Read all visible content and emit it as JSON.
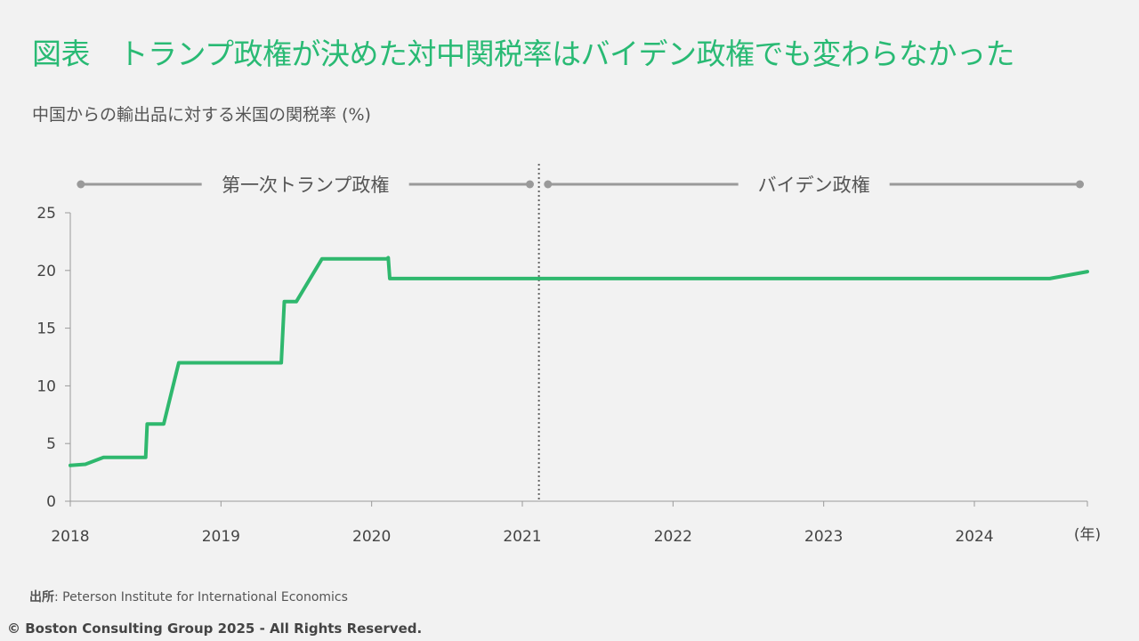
{
  "header": {
    "title": "図表　トランプ政権が決めた対中関税率はバイデン政権でも変わらなかった",
    "subtitle": "中国からの輸出品に対する米国の関税率 (%)"
  },
  "footer": {
    "source_label": "出所",
    "source_text": ": Peterson Institute for International Economics",
    "copyright": "© Boston Consulting Group 2025 - All Rights Reserved."
  },
  "chart_data": {
    "type": "line",
    "title": "",
    "ylabel": "",
    "x_unit_label": "(年)",
    "xlim": [
      2018,
      2024.75
    ],
    "ylim": [
      0,
      25
    ],
    "y_ticks": [
      0,
      5,
      10,
      15,
      20,
      25
    ],
    "x_ticks": [
      {
        "label": "2018",
        "value": 2018
      },
      {
        "label": "2019",
        "value": 2019
      },
      {
        "label": "2020",
        "value": 2020
      },
      {
        "label": "2021",
        "value": 2021
      },
      {
        "label": "2022",
        "value": 2022
      },
      {
        "label": "2023",
        "value": 2023
      },
      {
        "label": "2024",
        "value": 2024
      }
    ],
    "grid": false,
    "line_color": "#2fb86e",
    "divider": {
      "x": 2021.11,
      "style": "dotted"
    },
    "periods": [
      {
        "label": "第一次トランプ政権",
        "start": 2018.07,
        "end": 2021.05
      },
      {
        "label": "バイデン政権",
        "start": 2021.17,
        "end": 2024.7
      }
    ],
    "series": [
      {
        "points": [
          [
            2018.0,
            3.1
          ],
          [
            2018.1,
            3.2
          ],
          [
            2018.22,
            3.8
          ],
          [
            2018.5,
            3.8
          ],
          [
            2018.51,
            6.7
          ],
          [
            2018.62,
            6.7
          ],
          [
            2018.65,
            8.3
          ],
          [
            2018.72,
            12.0
          ],
          [
            2019.4,
            12.0
          ],
          [
            2019.42,
            17.3
          ],
          [
            2019.5,
            17.3
          ],
          [
            2019.67,
            21.0
          ],
          [
            2020.1,
            21.0
          ],
          [
            2020.11,
            21.1
          ],
          [
            2020.12,
            19.3
          ],
          [
            2021.0,
            19.3
          ],
          [
            2024.5,
            19.3
          ],
          [
            2024.75,
            19.9
          ]
        ]
      }
    ]
  }
}
